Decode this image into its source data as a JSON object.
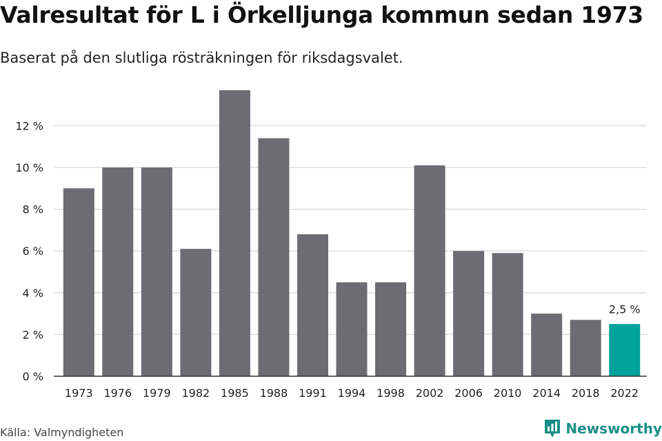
{
  "header": {
    "title": "Valresultat för L i Örkelljunga kommun sedan 1973",
    "subtitle": "Baserat på den slutliga rösträkningen för riksdagsvalet."
  },
  "footer": {
    "source": "Källa: Valmyndigheten",
    "brand": "Newsworthy"
  },
  "colors": {
    "bar": "#6d6c72",
    "highlight": "#00a39a",
    "grid": "#dddddd",
    "brand": "#1a8f86"
  },
  "chart_data": {
    "type": "bar",
    "categories": [
      "1973",
      "1976",
      "1979",
      "1982",
      "1985",
      "1988",
      "1991",
      "1994",
      "1998",
      "2002",
      "2006",
      "2010",
      "2014",
      "2018",
      "2022"
    ],
    "values": [
      9.0,
      10.0,
      10.0,
      6.1,
      13.7,
      11.4,
      6.8,
      4.5,
      4.5,
      10.1,
      6.0,
      5.9,
      3.0,
      2.7,
      2.5
    ],
    "highlight_index": 14,
    "annotation": "2,5 %",
    "yticks": [
      0,
      2,
      4,
      6,
      8,
      10,
      12
    ],
    "ytick_labels": [
      "0 %",
      "2 %",
      "4 %",
      "6 %",
      "8 %",
      "10 %",
      "12 %"
    ],
    "ylim": [
      0,
      14
    ],
    "grid": true,
    "xlabel": "",
    "ylabel": ""
  }
}
